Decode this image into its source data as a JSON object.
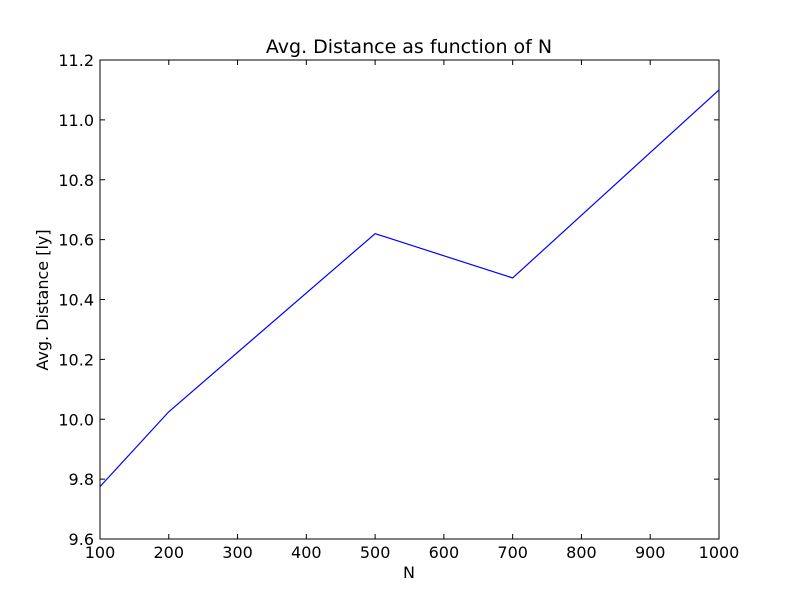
{
  "chart_data": {
    "type": "line",
    "title": "Avg. Distance as function of N",
    "xlabel": "N",
    "ylabel": "Avg. Distance [ly]",
    "xlim": [
      100,
      1000
    ],
    "ylim": [
      9.6,
      11.2
    ],
    "xticks": [
      "100",
      "200",
      "300",
      "400",
      "500",
      "600",
      "700",
      "800",
      "900",
      "1000"
    ],
    "yticks": [
      "9.6",
      "9.8",
      "10.0",
      "10.2",
      "10.4",
      "10.6",
      "10.8",
      "11.0",
      "11.2"
    ],
    "grid": false,
    "series": [
      {
        "color": "#0000ff",
        "x": [
          100,
          200,
          500,
          700,
          1000
        ],
        "y": [
          9.775,
          10.025,
          10.62,
          10.472,
          11.1
        ]
      }
    ]
  }
}
